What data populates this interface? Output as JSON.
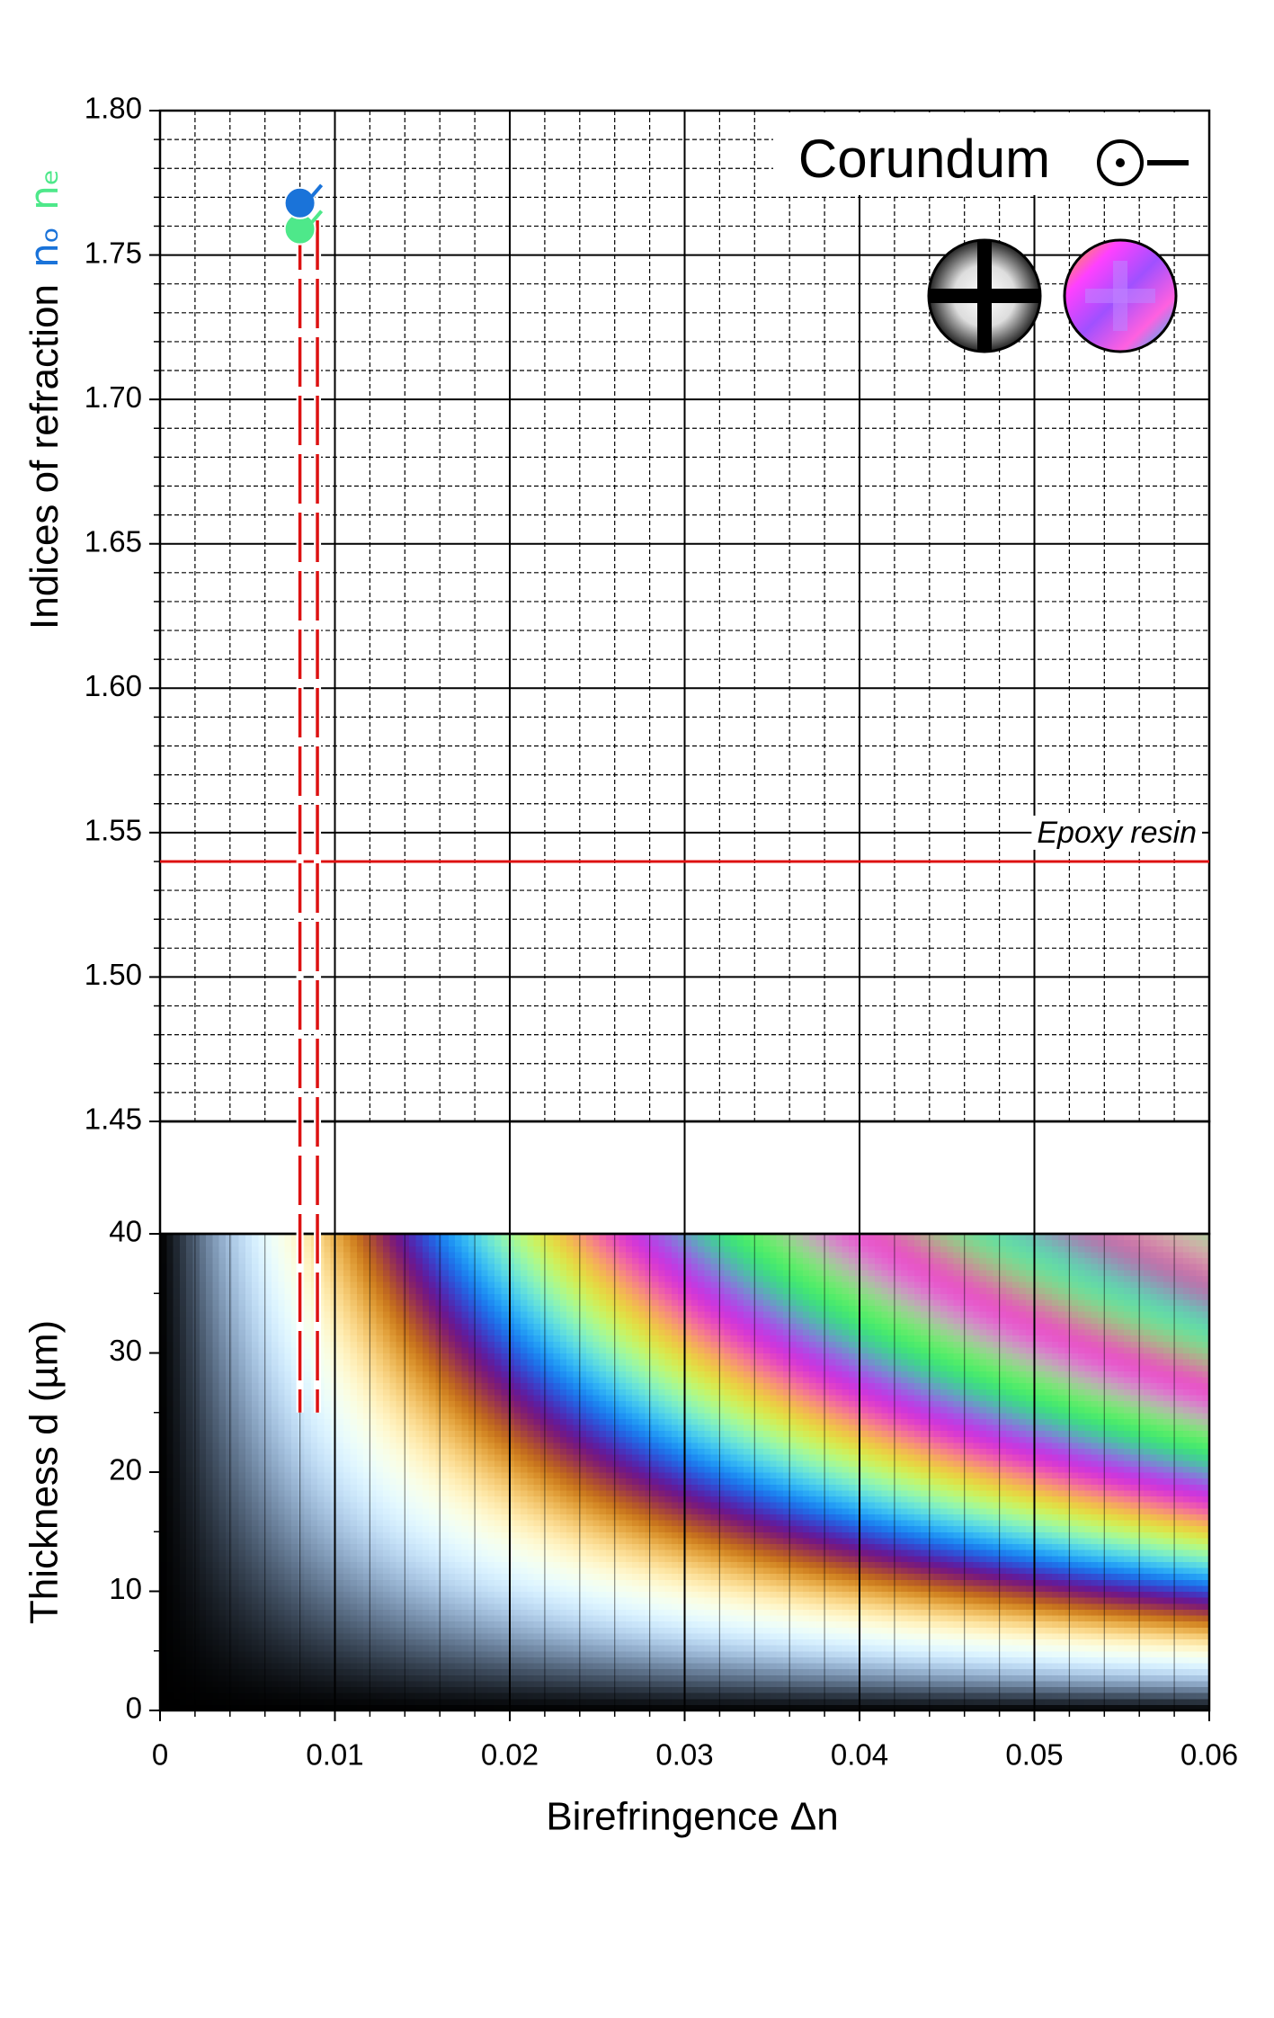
{
  "chart_data": [
    {
      "type": "scatter",
      "title": "Corundum",
      "ylabel": "Indices of refraction",
      "xlim": [
        0,
        0.06
      ],
      "ylim": [
        1.45,
        1.8
      ],
      "yticks": [
        {
          "value": 1.8,
          "label": "1.80"
        },
        1.75,
        {
          "value": 1.7,
          "label": "1.70"
        },
        1.65,
        {
          "value": 1.6,
          "label": "1.60"
        },
        1.55,
        {
          "value": 1.5,
          "label": "1.50"
        },
        1.45
      ],
      "grid": true,
      "series": [
        {
          "name": "nₒ",
          "color": "#1a73d9",
          "x": [
            0.008
          ],
          "values": [
            1.768
          ]
        },
        {
          "name": "nₑ",
          "color": "#4ee88a",
          "x": [
            0.008
          ],
          "values": [
            1.759
          ]
        }
      ],
      "reference_line": {
        "label": "Epoxy resin",
        "value": 1.54,
        "color": "#dd1111"
      },
      "birefringence_lines": {
        "x": [
          0.008,
          0.009
        ],
        "top": 1.762,
        "color": "#dd1111"
      }
    },
    {
      "type": "interference",
      "xlabel": "Birefringence  Δn",
      "ylabel": "Thickness  d (µm)",
      "xlim": [
        0,
        0.06
      ],
      "xticks": [
        0,
        0.01,
        0.02,
        0.03,
        0.04,
        0.05,
        0.06
      ],
      "ylim": [
        0,
        40
      ],
      "yticks": [
        0,
        10,
        20,
        30,
        40
      ],
      "birefringence_lines_end": 25
    }
  ]
}
